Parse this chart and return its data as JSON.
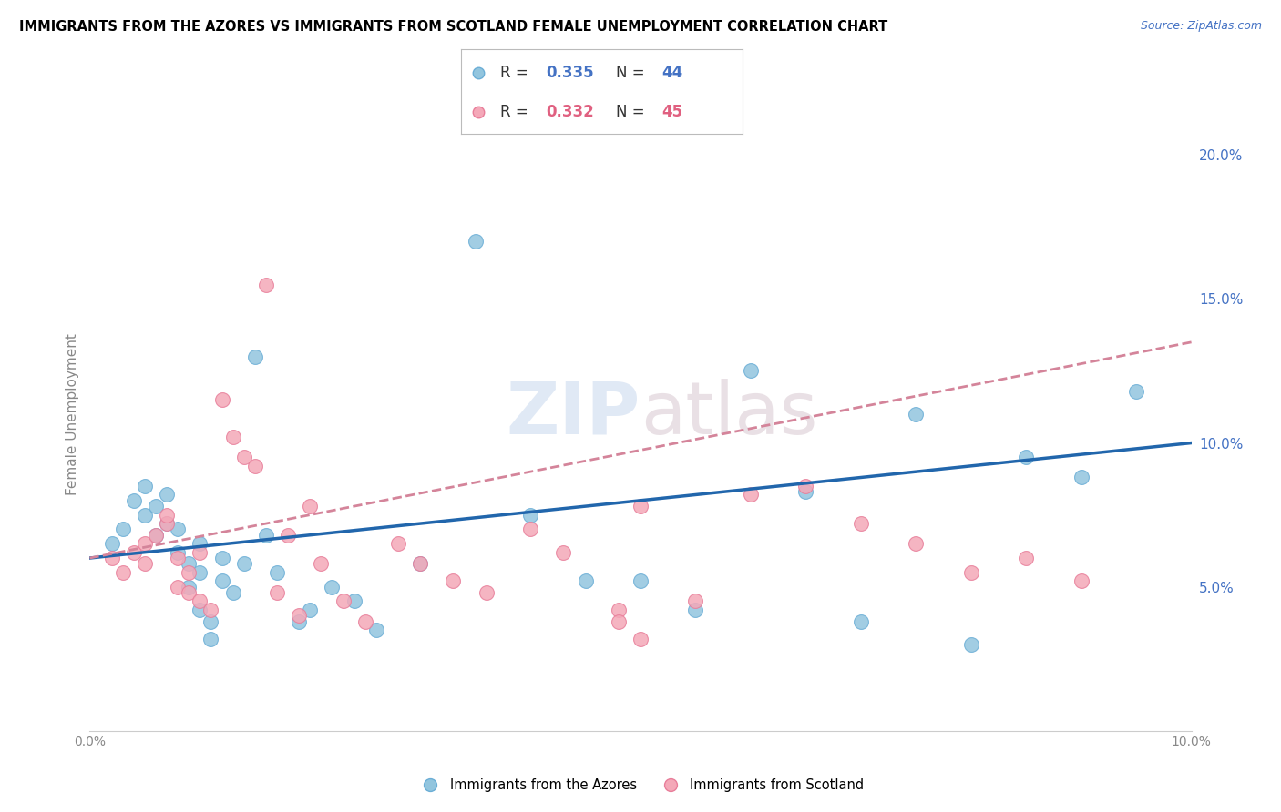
{
  "title": "IMMIGRANTS FROM THE AZORES VS IMMIGRANTS FROM SCOTLAND FEMALE UNEMPLOYMENT CORRELATION CHART",
  "source": "Source: ZipAtlas.com",
  "ylabel": "Female Unemployment",
  "xlim": [
    0.0,
    0.1
  ],
  "ylim": [
    0.0,
    0.22
  ],
  "watermark_zip": "ZIP",
  "watermark_atlas": "atlas",
  "azores_color": "#92c5de",
  "scotland_color": "#f4a8b8",
  "azores_edge_color": "#6baed6",
  "scotland_edge_color": "#e87e9a",
  "azores_line_color": "#2166ac",
  "scotland_line_color": "#d4849a",
  "legend_r1": "0.335",
  "legend_n1": "44",
  "legend_r2": "0.332",
  "legend_n2": "45",
  "azores_r_color": "#4472c4",
  "azores_n_color": "#4472c4",
  "scotland_r_color": "#e06080",
  "scotland_n_color": "#e06080",
  "azores_scatter_x": [
    0.002,
    0.003,
    0.004,
    0.005,
    0.005,
    0.006,
    0.006,
    0.007,
    0.007,
    0.008,
    0.008,
    0.009,
    0.009,
    0.01,
    0.01,
    0.01,
    0.011,
    0.011,
    0.012,
    0.012,
    0.013,
    0.014,
    0.015,
    0.016,
    0.017,
    0.019,
    0.02,
    0.022,
    0.024,
    0.026,
    0.03,
    0.035,
    0.04,
    0.045,
    0.05,
    0.055,
    0.06,
    0.065,
    0.07,
    0.075,
    0.08,
    0.085,
    0.09,
    0.095
  ],
  "azores_scatter_y": [
    0.065,
    0.07,
    0.08,
    0.085,
    0.075,
    0.078,
    0.068,
    0.082,
    0.072,
    0.07,
    0.062,
    0.058,
    0.05,
    0.065,
    0.055,
    0.042,
    0.038,
    0.032,
    0.06,
    0.052,
    0.048,
    0.058,
    0.13,
    0.068,
    0.055,
    0.038,
    0.042,
    0.05,
    0.045,
    0.035,
    0.058,
    0.17,
    0.075,
    0.052,
    0.052,
    0.042,
    0.125,
    0.083,
    0.038,
    0.11,
    0.03,
    0.095,
    0.088,
    0.118
  ],
  "scotland_scatter_x": [
    0.002,
    0.003,
    0.004,
    0.005,
    0.005,
    0.006,
    0.007,
    0.007,
    0.008,
    0.008,
    0.009,
    0.009,
    0.01,
    0.01,
    0.011,
    0.012,
    0.013,
    0.014,
    0.015,
    0.016,
    0.017,
    0.018,
    0.019,
    0.02,
    0.021,
    0.023,
    0.025,
    0.028,
    0.03,
    0.033,
    0.036,
    0.04,
    0.043,
    0.048,
    0.05,
    0.055,
    0.06,
    0.065,
    0.07,
    0.075,
    0.08,
    0.085,
    0.09,
    0.048,
    0.05
  ],
  "scotland_scatter_y": [
    0.06,
    0.055,
    0.062,
    0.058,
    0.065,
    0.068,
    0.072,
    0.075,
    0.06,
    0.05,
    0.055,
    0.048,
    0.062,
    0.045,
    0.042,
    0.115,
    0.102,
    0.095,
    0.092,
    0.155,
    0.048,
    0.068,
    0.04,
    0.078,
    0.058,
    0.045,
    0.038,
    0.065,
    0.058,
    0.052,
    0.048,
    0.07,
    0.062,
    0.042,
    0.078,
    0.045,
    0.082,
    0.085,
    0.072,
    0.065,
    0.055,
    0.06,
    0.052,
    0.038,
    0.032
  ],
  "azores_trendline_x": [
    0.0,
    0.1
  ],
  "azores_trendline_y": [
    0.06,
    0.1
  ],
  "scotland_trendline_x": [
    0.0,
    0.1
  ],
  "scotland_trendline_y": [
    0.06,
    0.135
  ]
}
